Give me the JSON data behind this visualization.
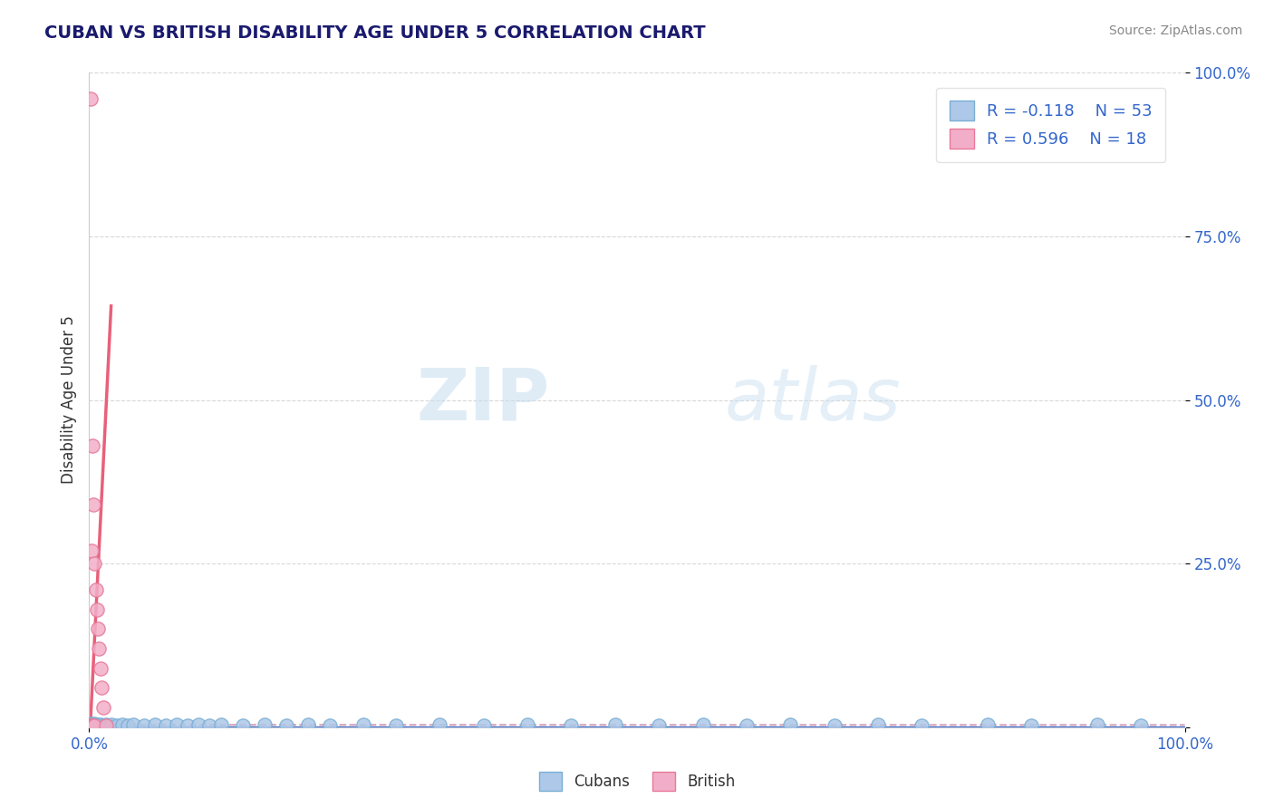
{
  "title": "CUBAN VS BRITISH DISABILITY AGE UNDER 5 CORRELATION CHART",
  "source": "Source: ZipAtlas.com",
  "ylabel": "Disability Age Under 5",
  "xlim": [
    0,
    1.0
  ],
  "ylim": [
    0,
    1.0
  ],
  "yticks": [
    0,
    0.25,
    0.5,
    0.75,
    1.0
  ],
  "ytick_labels": [
    "",
    "25.0%",
    "50.0%",
    "75.0%",
    "100.0%"
  ],
  "xtick_labels": [
    "0.0%",
    "100.0%"
  ],
  "watermark_zip": "ZIP",
  "watermark_atlas": "atlas",
  "legend_r1": "R = -0.118",
  "legend_n1": "N = 53",
  "legend_r2": "R = 0.596",
  "legend_n2": "N = 18",
  "cuban_color": "#adc8e8",
  "british_color": "#f2aec8",
  "cuban_edge": "#7aafd4",
  "british_edge": "#e8789a",
  "trend_cuban_color": "#d4a0b8",
  "trend_british_color": "#e8607a",
  "axis_color": "#3366cc",
  "title_color": "#1a1a6e",
  "background_color": "#ffffff",
  "grid_color": "#d8d8d8",
  "cuban_x": [
    0.001,
    0.002,
    0.002,
    0.003,
    0.003,
    0.004,
    0.004,
    0.005,
    0.005,
    0.006,
    0.007,
    0.008,
    0.009,
    0.01,
    0.012,
    0.015,
    0.018,
    0.02,
    0.025,
    0.03,
    0.035,
    0.04,
    0.05,
    0.06,
    0.07,
    0.08,
    0.09,
    0.1,
    0.11,
    0.12,
    0.14,
    0.16,
    0.18,
    0.2,
    0.22,
    0.25,
    0.28,
    0.32,
    0.36,
    0.4,
    0.44,
    0.48,
    0.52,
    0.56,
    0.6,
    0.64,
    0.68,
    0.72,
    0.76,
    0.82,
    0.86,
    0.92,
    0.96
  ],
  "cuban_y": [
    0.004,
    0.003,
    0.005,
    0.003,
    0.004,
    0.003,
    0.004,
    0.003,
    0.005,
    0.004,
    0.003,
    0.004,
    0.003,
    0.004,
    0.003,
    0.004,
    0.003,
    0.004,
    0.003,
    0.004,
    0.003,
    0.004,
    0.003,
    0.004,
    0.003,
    0.004,
    0.003,
    0.004,
    0.003,
    0.004,
    0.003,
    0.004,
    0.003,
    0.004,
    0.003,
    0.004,
    0.003,
    0.004,
    0.003,
    0.004,
    0.003,
    0.004,
    0.003,
    0.004,
    0.003,
    0.004,
    0.003,
    0.004,
    0.003,
    0.004,
    0.003,
    0.004,
    0.003
  ],
  "british_x": [
    0.001,
    0.001,
    0.002,
    0.002,
    0.003,
    0.003,
    0.004,
    0.004,
    0.005,
    0.005,
    0.006,
    0.007,
    0.008,
    0.009,
    0.01,
    0.011,
    0.013,
    0.015
  ],
  "british_y": [
    0.003,
    0.96,
    0.003,
    0.27,
    0.003,
    0.43,
    0.003,
    0.34,
    0.003,
    0.25,
    0.21,
    0.18,
    0.15,
    0.12,
    0.09,
    0.06,
    0.03,
    0.003
  ],
  "R_cuban": -0.118,
  "R_british": 0.596
}
